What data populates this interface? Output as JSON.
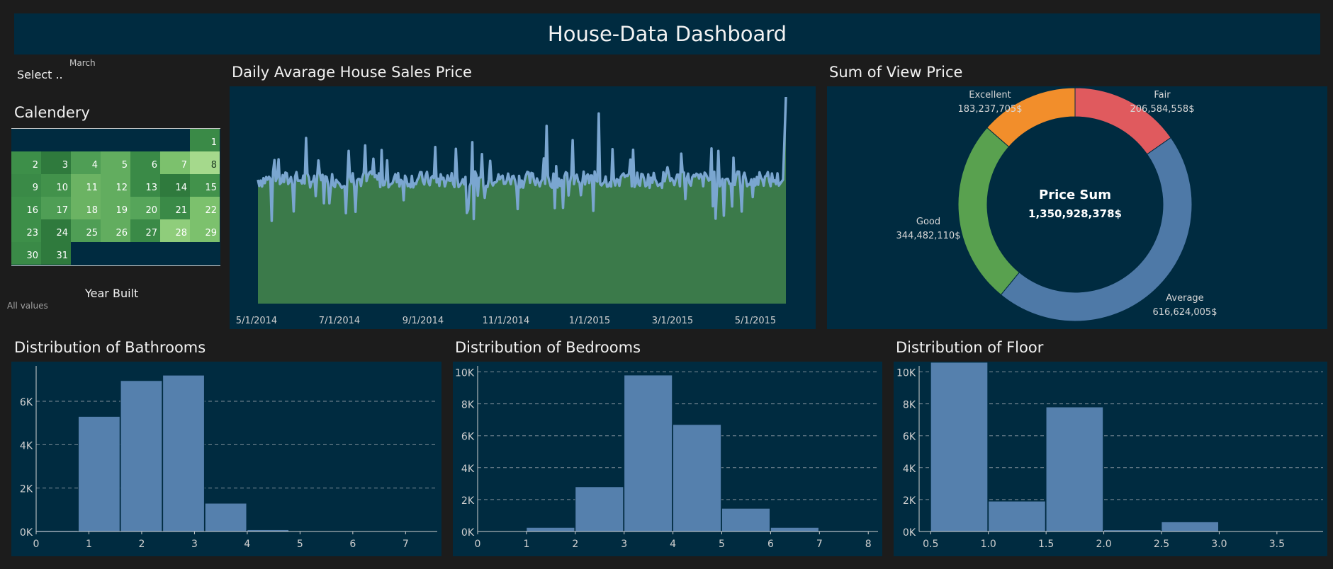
{
  "header": {
    "title": "House-Data Dashboard"
  },
  "filters": {
    "month_label": "March",
    "select_placeholder": "Select ..",
    "year_built_label": "Year Built",
    "year_built_value": "All values"
  },
  "calendar": {
    "title": "Calendery",
    "start_weekday": 6,
    "days": [
      "1",
      "2",
      "3",
      "4",
      "5",
      "6",
      "7",
      "8",
      "9",
      "10",
      "11",
      "12",
      "13",
      "14",
      "15",
      "16",
      "17",
      "18",
      "19",
      "20",
      "21",
      "22",
      "23",
      "24",
      "25",
      "26",
      "27",
      "28",
      "29",
      "30",
      "31"
    ],
    "colors": [
      "#3a8a47",
      "#3d8f49",
      "#2f7a3d",
      "#4f9e55",
      "#62ad5f",
      "#3a8a47",
      "#7cc16d",
      "#a5d98c",
      "#3a8a47",
      "#42924b",
      "#6bb363",
      "#62ad5f",
      "#3a8a47",
      "#2f7a3d",
      "#42924b",
      "#3d8f49",
      "#4f9e55",
      "#6bb363",
      "#62ad5f",
      "#56a55a",
      "#3a8a47",
      "#7cc16d",
      "#3d8f49",
      "#2f7a3d",
      "#4f9e55",
      "#62ad5f",
      "#3a8a47",
      "#8fcd7b",
      "#7cc16d",
      "#3a8a47",
      "#2f7a3d"
    ]
  },
  "daily": {
    "title": "Daily Avarage House Sales Price",
    "fill_color": "#3b7a4a",
    "line_color": "#7aa6d0",
    "x_ticks": [
      "5/1/2014",
      "7/1/2014",
      "9/1/2014",
      "11/1/2014",
      "1/1/2015",
      "3/1/2015",
      "5/1/2015"
    ]
  },
  "donut": {
    "title": "Sum of View Price",
    "center_title": "Price Sum",
    "center_value": "1,350,928,378$",
    "segments": [
      {
        "name": "Fair",
        "value_label": "206,584,558$",
        "value": 206584558,
        "color": "#e05a5e"
      },
      {
        "name": "Average",
        "value_label": "616,624,005$",
        "value": 616624005,
        "color": "#4e79a7"
      },
      {
        "name": "Good",
        "value_label": "344,482,110$",
        "value": 344482110,
        "color": "#59a14f"
      },
      {
        "name": "Excellent",
        "value_label": "183,237,705$",
        "value": 183237705,
        "color": "#f28e2b"
      }
    ]
  },
  "chart_data": [
    {
      "type": "area",
      "title": "Daily Avarage House Sales Price",
      "x_ticks": [
        "5/1/2014",
        "7/1/2014",
        "9/1/2014",
        "11/1/2014",
        "1/1/2015",
        "3/1/2015",
        "5/1/2015"
      ],
      "x": [
        "2014-05-02",
        "2014-05-31",
        "2014-06-30",
        "2014-07-31",
        "2014-08-31",
        "2014-09-30",
        "2014-10-31",
        "2014-11-30",
        "2014-12-31",
        "2015-01-31",
        "2015-02-28",
        "2015-03-31",
        "2015-04-30",
        "2015-05-14",
        "2015-05-24",
        "2015-05-27"
      ],
      "y": [
        0.55,
        0.58,
        0.53,
        0.57,
        0.52,
        0.56,
        0.54,
        0.58,
        0.51,
        0.55,
        0.56,
        0.54,
        0.57,
        0.53,
        0.54,
        1.0
      ],
      "grid": false
    },
    {
      "type": "pie",
      "title": "Sum of View Price",
      "labels": [
        "Fair",
        "Average",
        "Good",
        "Excellent"
      ],
      "values": [
        206584558,
        616624005,
        344482110,
        183237705
      ],
      "center_label": "Price Sum 1,350,928,378$"
    },
    {
      "type": "bar",
      "title": "Distribution of Bathrooms",
      "bin_edges": [
        0,
        0.8,
        1.6,
        2.4,
        3.2,
        4,
        4.8,
        5.6,
        6.4,
        7.2,
        8
      ],
      "values": [
        40,
        5300,
        6950,
        7200,
        1300,
        80,
        10,
        5,
        0,
        0
      ],
      "xlim": [
        0,
        7.6
      ],
      "ylim": [
        0,
        7500
      ],
      "x_ticks": [
        0,
        1,
        2,
        3,
        4,
        5,
        6,
        7
      ],
      "y_ticks": [
        "0K",
        "2K",
        "4K",
        "6K"
      ],
      "y_tick_values": [
        0,
        2000,
        4000,
        6000
      ],
      "grid": true
    },
    {
      "type": "bar",
      "title": "Distribution of Bedrooms",
      "bin_edges": [
        0,
        1.0,
        2.0,
        3.0,
        4.0,
        5.0,
        6.0,
        7.0,
        8.0
      ],
      "values": [
        20,
        250,
        2800,
        9800,
        6700,
        1450,
        250,
        50
      ],
      "xlim": [
        0,
        8.2
      ],
      "ylim": [
        0,
        10200
      ],
      "x_ticks": [
        0,
        1,
        2,
        3,
        4,
        5,
        6,
        7,
        8
      ],
      "y_ticks": [
        "0K",
        "2K",
        "4K",
        "6K",
        "8K",
        "10K"
      ],
      "y_tick_values": [
        0,
        2000,
        4000,
        6000,
        8000,
        10000
      ],
      "grid": true
    },
    {
      "type": "bar",
      "title": "Distribution of Floor",
      "bin_edges": [
        0.5,
        1.0,
        1.5,
        2.0,
        2.5,
        3.0,
        3.5
      ],
      "values": [
        10600,
        1900,
        7800,
        100,
        600,
        0
      ],
      "xlim": [
        0.4,
        3.9
      ],
      "ylim": [
        0,
        10200
      ],
      "x_ticks": [
        "0.5",
        "1.0",
        "1.5",
        "2.0",
        "2.5",
        "3.0",
        "3.5"
      ],
      "y_ticks": [
        "0K",
        "2K",
        "4K",
        "6K",
        "8K",
        "10K"
      ],
      "y_tick_values": [
        0,
        2000,
        4000,
        6000,
        8000,
        10000
      ],
      "grid": true
    }
  ],
  "hists": {
    "bath_title": "Distribution of Bathrooms",
    "bed_title": "Distribution of Bedrooms",
    "floor_title": "Distribution of Floor",
    "bar_color": "#5580ad"
  }
}
